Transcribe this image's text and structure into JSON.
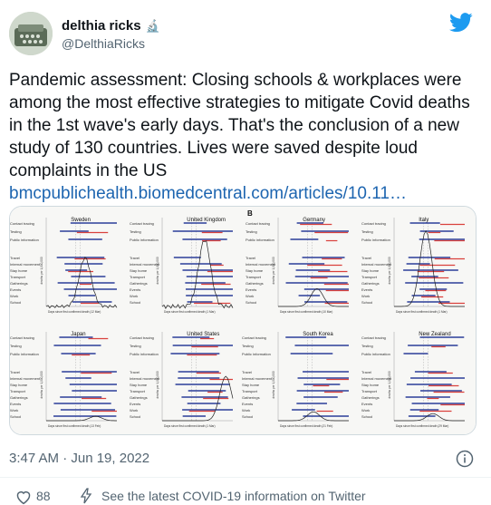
{
  "author": {
    "display_name": "delthia ricks",
    "badge_emoji": "🔬",
    "handle": "@DelthiaRicks"
  },
  "tweet": {
    "text": "Pandemic assessment: Closing schools & workplaces were among the most effective strategies to mitigate Covid deaths in the 1st wave's early days. That's the conclusion of a new study of 130 countries. Lives were saved despite loud complaints in the US",
    "link_text": "bmcpublichealth.biomedcentral.com/articles/10.11…"
  },
  "figure": {
    "panel_label": "B",
    "countries": [
      "Sweden",
      "United Kingdom",
      "Germany",
      "Italy",
      "Japan",
      "United States",
      "South Korea",
      "New Zealand"
    ],
    "measure_labels": [
      "Contact tracing",
      "Testing",
      "Public information",
      "Travel",
      "Internal movement",
      "Stay home",
      "Transport",
      "Gatherings",
      "Events",
      "Work",
      "School"
    ],
    "y_axis_label": "deaths per 1,000,000",
    "x_axis_labels": [
      "Days since first confirmed death (12 Mar)",
      "Days since first confirmed death (1 Mar)",
      "Days since first confirmed death (10 Mar)",
      "Days since first confirmed death (1 Mar)",
      "Days since first confirmed death (13 Feb)",
      "Days since first confirmed death (1 Mar)",
      "Days since first confirmed death (21 Feb)",
      "Days since first confirmed death (29 Mar)"
    ],
    "colors": {
      "blue": "#2c3e9a",
      "red": "#d9413c",
      "curve": "#222222"
    }
  },
  "meta": {
    "timestamp": "3:47 AM · Jun 19, 2022",
    "likes": "88",
    "footer_link": "See the latest COVID-19 information on Twitter"
  },
  "colors": {
    "link": "#1d65b0",
    "twitter_blue": "#1d9bf0",
    "muted": "#536471"
  }
}
